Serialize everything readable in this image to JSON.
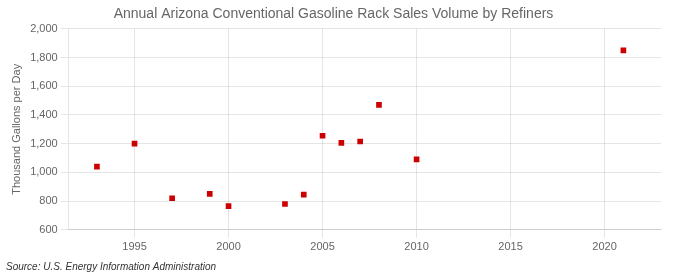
{
  "chart_data": {
    "type": "scatter",
    "title": "Annual Arizona Conventional Gasoline Rack Sales Volume by Refiners",
    "ylabel": "Thousand Gallons per Day",
    "annotations": [
      "Source: U.S. Energy Information Administration"
    ],
    "x": [
      1993,
      1995,
      1997,
      1999,
      2000,
      2003,
      2004,
      2005,
      2006,
      2007,
      2008,
      2010,
      2021
    ],
    "values": [
      1040,
      1200,
      820,
      850,
      765,
      780,
      845,
      1255,
      1205,
      1215,
      1470,
      1090,
      1850
    ],
    "color": "#cc0000",
    "marker": "square",
    "xlim": [
      1991.5,
      2023
    ],
    "xticks": [
      1995,
      2000,
      2005,
      2010,
      2015,
      2020
    ],
    "ylim": [
      600,
      2000
    ],
    "yticks": [
      600,
      800,
      {
        "value": 1000,
        "label": "1,000"
      },
      {
        "value": 1200,
        "label": "1,200"
      },
      {
        "value": 1400,
        "label": "1,400"
      },
      {
        "value": 1600,
        "label": "1,600"
      },
      {
        "value": 1800,
        "label": "1,800"
      },
      {
        "value": 2000,
        "label": "2,000"
      }
    ],
    "grid": true
  }
}
